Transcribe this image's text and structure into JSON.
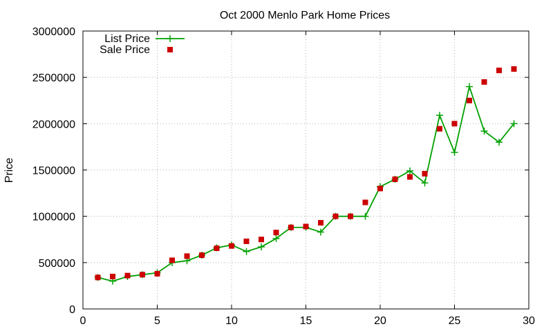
{
  "chart_data": {
    "type": "line",
    "title": "Oct 2000 Menlo Park Home Prices",
    "xlabel": "",
    "ylabel": "Price",
    "xlim": [
      0,
      30
    ],
    "ylim": [
      0,
      3000000
    ],
    "x_ticks": [
      0,
      5,
      10,
      15,
      20,
      25,
      30
    ],
    "y_ticks": [
      0,
      500000,
      1000000,
      1500000,
      2000000,
      2500000,
      3000000
    ],
    "grid": true,
    "legend_position": "top-left",
    "series": [
      {
        "name": "List Price",
        "style": "line+plus",
        "color": "#00a000",
        "x": [
          1,
          2,
          3,
          4,
          5,
          6,
          7,
          8,
          9,
          10,
          11,
          12,
          13,
          14,
          15,
          16,
          17,
          18,
          19,
          20,
          21,
          22,
          23,
          24,
          25,
          26,
          27,
          28,
          29
        ],
        "y": [
          340000,
          300000,
          350000,
          370000,
          390000,
          500000,
          520000,
          580000,
          660000,
          690000,
          620000,
          670000,
          760000,
          880000,
          880000,
          830000,
          1000000,
          1000000,
          1000000,
          1320000,
          1400000,
          1490000,
          1360000,
          2090000,
          1690000,
          2400000,
          1920000,
          1800000,
          2000000
        ]
      },
      {
        "name": "Sale Price",
        "style": "square",
        "color": "#cc0000",
        "x": [
          1,
          2,
          3,
          4,
          5,
          6,
          7,
          8,
          9,
          10,
          11,
          12,
          13,
          14,
          15,
          16,
          17,
          18,
          19,
          20,
          21,
          22,
          23,
          24,
          25,
          26,
          27,
          28,
          29
        ],
        "y": [
          340000,
          350000,
          360000,
          370000,
          380000,
          525000,
          570000,
          580000,
          655000,
          680000,
          730000,
          750000,
          825000,
          880000,
          890000,
          930000,
          1000000,
          1000000,
          1150000,
          1300000,
          1400000,
          1425000,
          1460000,
          1945000,
          2000000,
          2250000,
          2450000,
          2575000,
          2590000
        ]
      }
    ]
  }
}
